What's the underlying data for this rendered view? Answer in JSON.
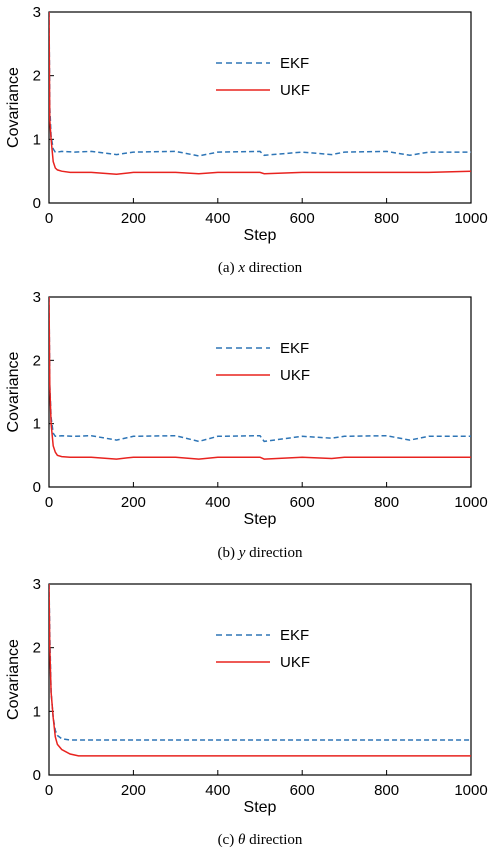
{
  "chart_data": [
    {
      "type": "line",
      "caption": {
        "prefix": "(a) ",
        "symbol": "x",
        "suffix": " direction"
      },
      "xlabel": "Step",
      "ylabel": "Covariance",
      "xlim": [
        0,
        1000
      ],
      "ylim": [
        0,
        3
      ],
      "xticks": [
        "0",
        "200",
        "400",
        "600",
        "800",
        "1000"
      ],
      "yticks": [
        "0",
        "1",
        "2",
        "3"
      ],
      "legend_position": "top-right",
      "grid": false,
      "series": [
        {
          "name": "EKF",
          "color": "#2e75b6",
          "style": "dashed",
          "x": [
            0,
            2,
            5,
            10,
            15,
            20,
            30,
            60,
            100,
            160,
            200,
            300,
            355,
            400,
            500,
            510,
            600,
            670,
            700,
            800,
            855,
            900,
            1000
          ],
          "y": [
            3.0,
            1.5,
            1.05,
            0.85,
            0.8,
            0.8,
            0.81,
            0.8,
            0.81,
            0.76,
            0.8,
            0.81,
            0.74,
            0.8,
            0.81,
            0.75,
            0.8,
            0.76,
            0.8,
            0.81,
            0.75,
            0.8,
            0.8
          ]
        },
        {
          "name": "UKF",
          "color": "#e8231f",
          "style": "solid",
          "x": [
            0,
            2,
            5,
            10,
            15,
            20,
            30,
            50,
            100,
            160,
            200,
            300,
            355,
            400,
            500,
            510,
            600,
            700,
            800,
            900,
            1000
          ],
          "y": [
            3.0,
            1.3,
            1.0,
            0.65,
            0.55,
            0.52,
            0.5,
            0.48,
            0.48,
            0.45,
            0.48,
            0.48,
            0.46,
            0.48,
            0.48,
            0.46,
            0.48,
            0.48,
            0.48,
            0.48,
            0.5
          ]
        }
      ]
    },
    {
      "type": "line",
      "caption": {
        "prefix": "(b) ",
        "symbol": "y",
        "suffix": " direction"
      },
      "xlabel": "Step",
      "ylabel": "Covariance",
      "xlim": [
        0,
        1000
      ],
      "ylim": [
        0,
        3
      ],
      "xticks": [
        "0",
        "200",
        "400",
        "600",
        "800",
        "1000"
      ],
      "yticks": [
        "0",
        "1",
        "2",
        "3"
      ],
      "legend_position": "top-right",
      "grid": false,
      "series": [
        {
          "name": "EKF",
          "color": "#2e75b6",
          "style": "dashed",
          "x": [
            0,
            2,
            5,
            10,
            15,
            20,
            30,
            60,
            100,
            160,
            200,
            300,
            355,
            400,
            500,
            510,
            600,
            670,
            700,
            800,
            855,
            900,
            1000
          ],
          "y": [
            3.0,
            1.6,
            1.1,
            0.85,
            0.8,
            0.8,
            0.81,
            0.8,
            0.81,
            0.74,
            0.8,
            0.81,
            0.72,
            0.8,
            0.81,
            0.72,
            0.8,
            0.77,
            0.8,
            0.81,
            0.74,
            0.8,
            0.8
          ]
        },
        {
          "name": "UKF",
          "color": "#e8231f",
          "style": "solid",
          "x": [
            0,
            2,
            5,
            10,
            15,
            20,
            30,
            50,
            100,
            160,
            200,
            300,
            355,
            400,
            500,
            510,
            600,
            670,
            700,
            800,
            900,
            1000
          ],
          "y": [
            3.0,
            1.6,
            1.0,
            0.65,
            0.55,
            0.5,
            0.48,
            0.47,
            0.47,
            0.44,
            0.47,
            0.47,
            0.44,
            0.47,
            0.47,
            0.44,
            0.47,
            0.45,
            0.47,
            0.47,
            0.47,
            0.47
          ]
        }
      ]
    },
    {
      "type": "line",
      "caption": {
        "prefix": "(c) ",
        "symbol": "θ",
        "suffix": " direction"
      },
      "xlabel": "Step",
      "ylabel": "Covariance",
      "xlim": [
        0,
        1000
      ],
      "ylim": [
        0,
        3
      ],
      "xticks": [
        "0",
        "200",
        "400",
        "600",
        "800",
        "1000"
      ],
      "yticks": [
        "0",
        "1",
        "2",
        "3"
      ],
      "legend_position": "top-right",
      "grid": false,
      "series": [
        {
          "name": "EKF",
          "color": "#2e75b6",
          "style": "dashed",
          "x": [
            0,
            2,
            5,
            10,
            15,
            20,
            30,
            50,
            100,
            200,
            300,
            400,
            500,
            600,
            700,
            800,
            900,
            1000
          ],
          "y": [
            3.0,
            2.2,
            1.3,
            0.9,
            0.7,
            0.62,
            0.57,
            0.55,
            0.55,
            0.55,
            0.55,
            0.55,
            0.55,
            0.55,
            0.55,
            0.55,
            0.55,
            0.55
          ]
        },
        {
          "name": "UKF",
          "color": "#e8231f",
          "style": "solid",
          "x": [
            0,
            2,
            5,
            10,
            15,
            20,
            30,
            50,
            70,
            100,
            200,
            300,
            400,
            500,
            600,
            700,
            800,
            900,
            1000
          ],
          "y": [
            3.0,
            2.0,
            1.3,
            0.9,
            0.6,
            0.48,
            0.4,
            0.33,
            0.3,
            0.3,
            0.3,
            0.3,
            0.3,
            0.3,
            0.3,
            0.3,
            0.3,
            0.3,
            0.3
          ]
        }
      ]
    }
  ]
}
